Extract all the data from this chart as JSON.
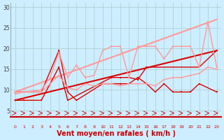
{
  "background_color": "#cceeff",
  "grid_color": "#aacccc",
  "xlabel": "Vent moyen/en rafales ( km/h )",
  "xlabel_color": "#cc0000",
  "xlabel_fontsize": 7,
  "xtick_labels": [
    "0",
    "1",
    "2",
    "3",
    "4",
    "5",
    "6",
    "7",
    "8",
    "9",
    "10",
    "11",
    "12",
    "13",
    "14",
    "15",
    "16",
    "17",
    "18",
    "19",
    "20",
    "21",
    "22",
    "23"
  ],
  "ytick_positions": [
    5,
    10,
    15,
    20,
    25,
    30
  ],
  "ytick_labels": [
    "5",
    "10",
    "15",
    "20",
    "25",
    "30"
  ],
  "ylim": [
    3.5,
    31
  ],
  "xlim": [
    -0.5,
    23.5
  ],
  "lines": [
    {
      "x": [
        0,
        1,
        3,
        5,
        6,
        11,
        12,
        13,
        14,
        15,
        21,
        23
      ],
      "y": [
        7.5,
        7.5,
        7.5,
        15.5,
        7.5,
        13.0,
        13.0,
        13.0,
        12.5,
        15.5,
        15.5,
        19.5
      ],
      "color": "#dd0000",
      "marker": "s",
      "markersize": 2.0,
      "linewidth": 1.0,
      "connected": false
    },
    {
      "x": [
        0,
        1,
        3,
        5,
        6,
        7,
        10,
        11,
        12,
        13,
        14,
        15,
        16,
        17,
        18,
        19,
        20,
        21,
        23
      ],
      "y": [
        9.5,
        9.5,
        9.5,
        19.5,
        9.5,
        7.5,
        11.5,
        11.5,
        11.5,
        11.5,
        13.0,
        11.5,
        9.5,
        11.5,
        9.5,
        9.5,
        9.5,
        11.5,
        9.5
      ],
      "color": "#dd0000",
      "marker": "s",
      "markersize": 2.0,
      "linewidth": 1.0,
      "connected": true
    },
    {
      "x": [
        0,
        1,
        3,
        5,
        6,
        7,
        8,
        9,
        10,
        11,
        12,
        13,
        14,
        15,
        16,
        17,
        18,
        19,
        20,
        21,
        22,
        23
      ],
      "y": [
        9.0,
        9.5,
        9.5,
        13.5,
        10.5,
        10.0,
        11.5,
        11.0,
        11.5,
        11.5,
        11.0,
        11.5,
        11.5,
        11.5,
        11.0,
        12.5,
        13.0,
        13.0,
        13.5,
        14.0,
        15.5,
        15.0
      ],
      "color": "#ff9999",
      "marker": "s",
      "markersize": 2.0,
      "linewidth": 1.0,
      "connected": true
    },
    {
      "x": [
        0,
        1,
        3,
        4,
        5,
        6,
        7,
        8,
        9,
        10,
        11,
        12,
        13,
        14,
        15,
        16,
        17,
        18,
        19,
        20,
        21,
        22,
        23
      ],
      "y": [
        9.5,
        9.5,
        10.0,
        13.0,
        19.0,
        13.0,
        16.0,
        13.0,
        13.5,
        19.5,
        20.5,
        20.5,
        13.0,
        20.5,
        20.5,
        20.5,
        17.5,
        20.5,
        20.5,
        20.5,
        15.5,
        26.5,
        15.5
      ],
      "color": "#ff9999",
      "marker": "s",
      "markersize": 2.0,
      "linewidth": 1.0,
      "connected": true
    },
    {
      "x": [
        0,
        23
      ],
      "y": [
        7.5,
        19.5
      ],
      "color": "#dd0000",
      "marker": null,
      "markersize": 0,
      "linewidth": 1.5,
      "connected": true
    },
    {
      "x": [
        0,
        23
      ],
      "y": [
        9.5,
        27.0
      ],
      "color": "#ff9999",
      "marker": null,
      "markersize": 0,
      "linewidth": 1.5,
      "connected": true
    }
  ]
}
